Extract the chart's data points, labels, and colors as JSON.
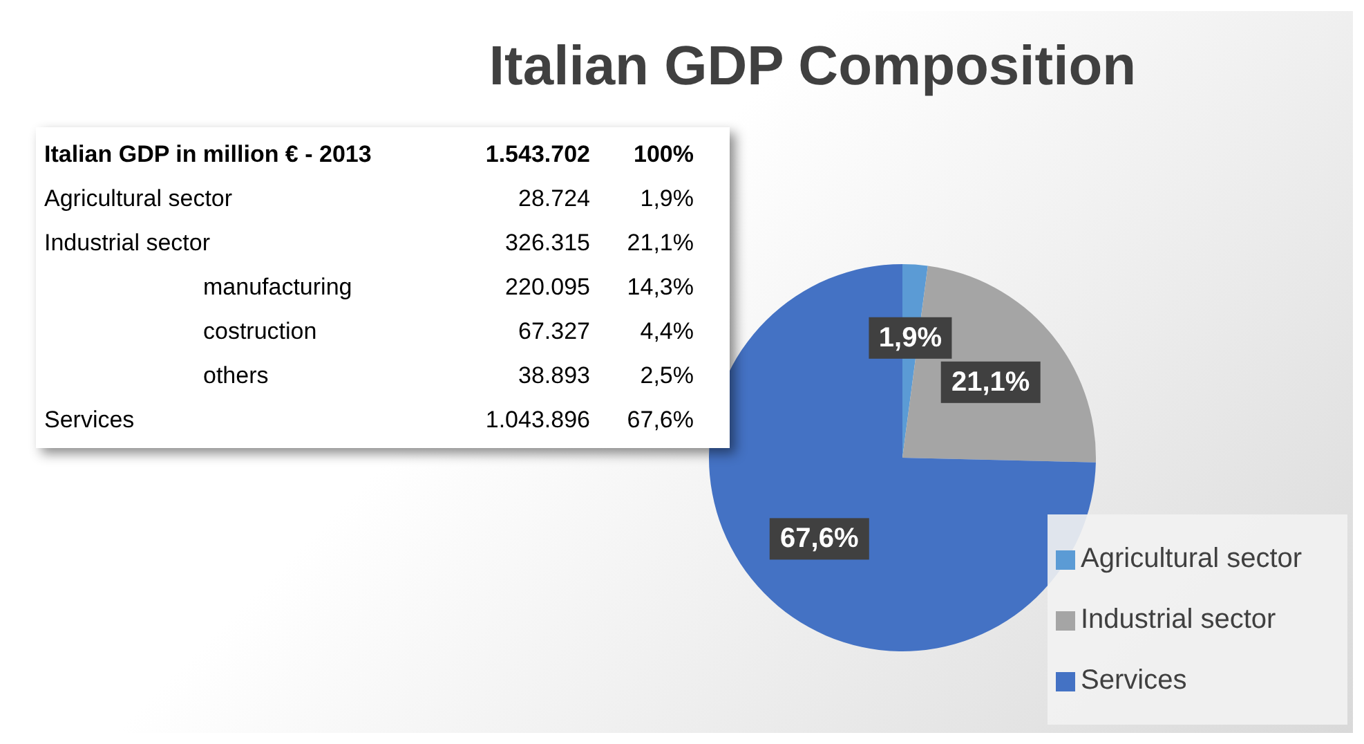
{
  "chart_data": {
    "type": "pie",
    "title": "Italian GDP Composition",
    "categories": [
      "Agricultural sector",
      "Industrial sector",
      "Services"
    ],
    "values": [
      1.9,
      21.1,
      67.6
    ],
    "colors": [
      "#5b9bd5",
      "#a5a5a5",
      "#4472c4"
    ],
    "value_labels": [
      "1,9%",
      "21,1%",
      "67,6%"
    ],
    "legend": "bottom right",
    "annotations": [
      "Italian GDP in million € - 2013",
      "1.543.702",
      "100%",
      "Agricultural sector",
      "28.724",
      "1,9%",
      "Industrial sector",
      "326.315",
      "21,1%",
      "manufacturing",
      "220.095",
      "14,3%",
      "costruction",
      "67.327",
      "4,4%",
      "others",
      "38.893",
      "2,5%",
      "Services",
      "1.043.896",
      "67,6%"
    ]
  }
}
